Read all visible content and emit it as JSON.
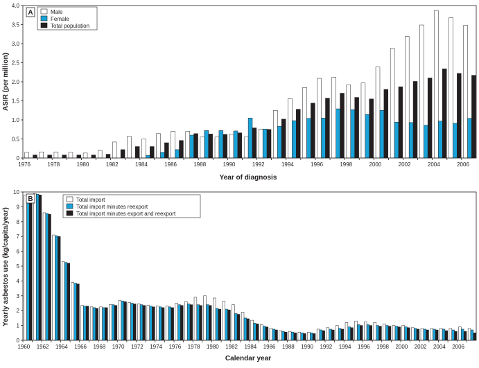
{
  "colors": {
    "white": "#ffffff",
    "blue": "#1aa3d8",
    "black": "#231f20",
    "axis": "#231f20"
  },
  "chart_data": [
    {
      "type": "bar",
      "panel": "A",
      "xlabel": "Year of diagnosis",
      "ylabel": "ASIR (per million)",
      "ylim": [
        0,
        4.0
      ],
      "yticks": [
        "0",
        "0.5",
        "1.0",
        "1.5",
        "2.0",
        "2.5",
        "3.0",
        "3.5",
        "4.0"
      ],
      "ytick_values": [
        0,
        0.5,
        1.0,
        1.5,
        2.0,
        2.5,
        3.0,
        3.5,
        4.0
      ],
      "x": [
        1976,
        1977,
        1978,
        1979,
        1980,
        1981,
        1982,
        1983,
        1984,
        1985,
        1986,
        1987,
        1988,
        1989,
        1990,
        1991,
        1992,
        1993,
        1994,
        1995,
        1996,
        1997,
        1998,
        1999,
        2000,
        2001,
        2002,
        2003,
        2004,
        2005,
        2006
      ],
      "xticks": [
        "1976",
        "1978",
        "1980",
        "1982",
        "1984",
        "1986",
        "1988",
        "1990",
        "1992",
        "1994",
        "1996",
        "1998",
        "2000",
        "2002",
        "2004",
        "2006"
      ],
      "legend_position": "top-left",
      "series": [
        {
          "name": "Male",
          "color": "#ffffff",
          "values": [
            0.15,
            0.16,
            0.16,
            0.15,
            0.13,
            0.2,
            0.42,
            0.57,
            0.5,
            0.64,
            0.7,
            0.7,
            0.55,
            0.55,
            0.63,
            0.55,
            0.76,
            1.25,
            1.56,
            1.85,
            2.09,
            2.12,
            1.92,
            1.97,
            2.39,
            2.88,
            3.19,
            3.49,
            3.87,
            3.68,
            3.48
          ]
        },
        {
          "name": "Female",
          "color": "#1aa3d8",
          "values": [
            0,
            0,
            0,
            0,
            0,
            0,
            0,
            0,
            0.07,
            0.15,
            0.22,
            0.6,
            0.72,
            0.72,
            0.71,
            1.05,
            0.76,
            0.83,
            0.98,
            1.04,
            1.05,
            1.29,
            1.27,
            1.14,
            1.25,
            0.94,
            0.93,
            0.86,
            0.97,
            0.91,
            1.04
          ]
        },
        {
          "name": "Total population",
          "color": "#231f20",
          "values": [
            0.08,
            0.08,
            0.08,
            0.08,
            0.08,
            0.1,
            0.22,
            0.3,
            0.3,
            0.4,
            0.46,
            0.64,
            0.63,
            0.62,
            0.66,
            0.79,
            0.75,
            1.02,
            1.28,
            1.44,
            1.57,
            1.7,
            1.59,
            1.55,
            1.8,
            1.87,
            2.01,
            2.1,
            2.34,
            2.22,
            2.17
          ]
        }
      ]
    },
    {
      "type": "bar",
      "panel": "B",
      "xlabel": "Calendar year",
      "ylabel": "Yearly asbestos use (kg/capita/year)",
      "ylim": [
        0,
        10
      ],
      "yticks": [
        "0",
        "1",
        "2",
        "3",
        "4",
        "5",
        "6",
        "7",
        "8",
        "9",
        "10"
      ],
      "ytick_values": [
        0,
        1,
        2,
        3,
        4,
        5,
        6,
        7,
        8,
        9,
        10
      ],
      "x": [
        1960,
        1961,
        1962,
        1963,
        1964,
        1965,
        1966,
        1967,
        1968,
        1969,
        1970,
        1971,
        1972,
        1973,
        1974,
        1975,
        1976,
        1977,
        1978,
        1979,
        1980,
        1981,
        1982,
        1983,
        1984,
        1985,
        1986,
        1987,
        1988,
        1989,
        1990,
        1991,
        1992,
        1993,
        1994,
        1995,
        1996,
        1997,
        1998,
        1999,
        2000,
        2001,
        2002,
        2003,
        2004,
        2005,
        2006,
        2007
      ],
      "xticks": [
        "1960",
        "1962",
        "1964",
        "1966",
        "1968",
        "1970",
        "1972",
        "1974",
        "1976",
        "1978",
        "1980",
        "1982",
        "1984",
        "1986",
        "1988",
        "1990",
        "1992",
        "1994",
        "1996",
        "1998",
        "2000",
        "2002",
        "2004",
        "2006"
      ],
      "legend_position": "top-left",
      "series": [
        {
          "name": "Total import",
          "color": "#ffffff",
          "values": [
            9.8,
            9.9,
            8.6,
            7.1,
            5.3,
            3.9,
            2.35,
            2.25,
            2.25,
            2.4,
            2.7,
            2.55,
            2.45,
            2.35,
            2.3,
            2.3,
            2.5,
            2.6,
            2.9,
            3.0,
            2.85,
            2.65,
            2.4,
            1.9,
            1.35,
            1.05,
            0.8,
            0.65,
            0.6,
            0.55,
            0.55,
            0.75,
            0.85,
            1.0,
            1.2,
            1.3,
            1.25,
            1.2,
            1.1,
            1.0,
            1.0,
            0.85,
            0.8,
            0.8,
            0.8,
            0.8,
            0.9,
            0.8
          ]
        },
        {
          "name": "Total import minutes reexport",
          "color": "#1aa3d8",
          "values": [
            9.7,
            9.85,
            8.55,
            7.05,
            5.25,
            3.85,
            2.3,
            2.2,
            2.2,
            2.4,
            2.65,
            2.5,
            2.4,
            2.3,
            2.25,
            2.25,
            2.4,
            2.45,
            2.4,
            2.4,
            2.15,
            2.1,
            1.8,
            1.5,
            1.15,
            0.95,
            0.75,
            0.6,
            0.55,
            0.5,
            0.5,
            0.7,
            0.75,
            0.8,
            0.9,
            1.05,
            1.05,
            1.0,
            1.0,
            0.95,
            0.9,
            0.8,
            0.75,
            0.75,
            0.75,
            0.7,
            0.75,
            0.7
          ]
        },
        {
          "name": "Total import minutes export and reexport",
          "color": "#231f20",
          "values": [
            9.65,
            9.8,
            8.5,
            7.0,
            5.2,
            3.8,
            2.3,
            2.15,
            2.2,
            2.35,
            2.6,
            2.45,
            2.35,
            2.25,
            2.2,
            2.2,
            2.35,
            2.4,
            2.35,
            2.35,
            2.1,
            2.05,
            1.75,
            1.45,
            1.1,
            0.9,
            0.7,
            0.55,
            0.5,
            0.45,
            0.45,
            0.65,
            0.7,
            0.75,
            0.85,
            1.0,
            1.0,
            0.95,
            0.95,
            0.9,
            0.85,
            0.75,
            0.7,
            0.7,
            0.65,
            0.6,
            0.6,
            0.5
          ]
        }
      ]
    }
  ]
}
